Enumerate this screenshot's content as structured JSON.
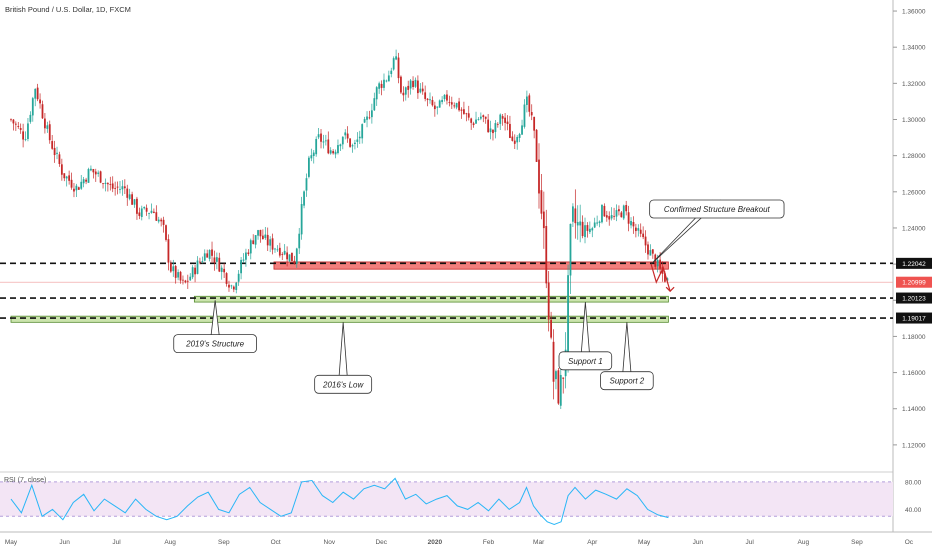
{
  "chart_data": {
    "type": "candlestick",
    "title": "British Pound / U.S. Dollar, 1D, FXCM",
    "colors": {
      "up": "#26a69a",
      "down": "#c62828",
      "resistance_zone": "#ef5350",
      "support_zone": "#8bc34a",
      "rsi_line": "#29b6f6",
      "rsi_band": "#f3e5f5",
      "price_line": "#ef9a9a",
      "price_tag": "#ef5350",
      "arrow": "#c62828",
      "axis_text": "#555555",
      "level_tag": "#111111"
    },
    "price_axis": {
      "ylim": [
        1.105,
        1.365
      ],
      "ticks": [
        "1.36000",
        "1.34000",
        "1.32000",
        "1.30000",
        "1.28000",
        "1.26000",
        "1.24000",
        "1.22000",
        "1.20000",
        "1.18000",
        "1.16000",
        "1.14000",
        "1.12000"
      ]
    },
    "time_axis": {
      "labels": [
        {
          "text": "May",
          "day": 0
        },
        {
          "text": "Jun",
          "day": 31
        },
        {
          "text": "Jul",
          "day": 61
        },
        {
          "text": "Aug",
          "day": 92
        },
        {
          "text": "Sep",
          "day": 123
        },
        {
          "text": "Oct",
          "day": 153
        },
        {
          "text": "Nov",
          "day": 184
        },
        {
          "text": "Dec",
          "day": 214
        },
        {
          "text": "2020",
          "day": 245
        },
        {
          "text": "Feb",
          "day": 276
        },
        {
          "text": "Mar",
          "day": 305
        },
        {
          "text": "Apr",
          "day": 336
        },
        {
          "text": "May",
          "day": 366
        },
        {
          "text": "Jun",
          "day": 397
        },
        {
          "text": "Jul",
          "day": 427
        },
        {
          "text": "Aug",
          "day": 458
        },
        {
          "text": "Sep",
          "day": 489
        },
        {
          "text": "Oc",
          "day": 519
        }
      ],
      "last_day": 380
    },
    "close_path": [
      [
        0,
        1.3
      ],
      [
        8,
        1.29
      ],
      [
        14,
        1.318
      ],
      [
        22,
        1.29
      ],
      [
        30,
        1.27
      ],
      [
        38,
        1.262
      ],
      [
        46,
        1.272
      ],
      [
        52,
        1.268
      ],
      [
        58,
        1.262
      ],
      [
        66,
        1.262
      ],
      [
        74,
        1.248
      ],
      [
        82,
        1.25
      ],
      [
        88,
        1.24
      ],
      [
        92,
        1.218
      ],
      [
        100,
        1.208
      ],
      [
        108,
        1.22
      ],
      [
        114,
        1.228
      ],
      [
        120,
        1.22
      ],
      [
        128,
        1.207
      ],
      [
        134,
        1.222
      ],
      [
        142,
        1.238
      ],
      [
        148,
        1.232
      ],
      [
        156,
        1.228
      ],
      [
        164,
        1.222
      ],
      [
        168,
        1.25
      ],
      [
        172,
        1.275
      ],
      [
        178,
        1.29
      ],
      [
        186,
        1.282
      ],
      [
        192,
        1.292
      ],
      [
        198,
        1.284
      ],
      [
        206,
        1.3
      ],
      [
        212,
        1.318
      ],
      [
        218,
        1.324
      ],
      [
        222,
        1.335
      ],
      [
        226,
        1.312
      ],
      [
        232,
        1.322
      ],
      [
        240,
        1.31
      ],
      [
        246,
        1.305
      ],
      [
        252,
        1.312
      ],
      [
        258,
        1.308
      ],
      [
        266,
        1.298
      ],
      [
        272,
        1.302
      ],
      [
        278,
        1.292
      ],
      [
        284,
        1.302
      ],
      [
        290,
        1.288
      ],
      [
        294,
        1.295
      ],
      [
        298,
        1.31
      ],
      [
        302,
        1.295
      ],
      [
        306,
        1.258
      ],
      [
        310,
        1.21
      ],
      [
        313,
        1.158
      ],
      [
        317,
        1.148
      ],
      [
        320,
        1.165
      ],
      [
        324,
        1.245
      ],
      [
        330,
        1.238
      ],
      [
        336,
        1.24
      ],
      [
        342,
        1.25
      ],
      [
        348,
        1.245
      ],
      [
        354,
        1.25
      ],
      [
        360,
        1.24
      ],
      [
        366,
        1.232
      ],
      [
        372,
        1.222
      ],
      [
        376,
        1.215
      ],
      [
        380,
        1.21
      ]
    ],
    "support_resistance": {
      "levels": [
        {
          "price": 1.22042,
          "label": "1.22042"
        },
        {
          "price": 1.20123,
          "label": "1.20123"
        },
        {
          "price": 1.19017,
          "label": "1.19017"
        }
      ],
      "current_price": {
        "price": 1.20999,
        "label": "1.20999"
      },
      "zones": [
        {
          "kind": "resistance",
          "low": 1.2172,
          "high": 1.2212,
          "from_day": 152,
          "to_day": 380
        },
        {
          "kind": "support",
          "low": 1.199,
          "high": 1.2022,
          "from_day": 106,
          "to_day": 380
        },
        {
          "kind": "support",
          "low": 1.1878,
          "high": 1.1912,
          "from_day": 0,
          "to_day": 380
        }
      ]
    },
    "annotations": [
      {
        "text": "2019's Structure",
        "day": 118,
        "price": 1.176,
        "target_day": 118,
        "target_price": 1.2
      },
      {
        "text": "2016's Low",
        "day": 192,
        "price": 1.1535,
        "target_day": 192,
        "target_price": 1.1878
      },
      {
        "text": "Support 1",
        "day": 332,
        "price": 1.1665,
        "target_day": 332,
        "target_price": 1.199
      },
      {
        "text": "Support 2",
        "day": 356,
        "price": 1.1555,
        "target_day": 356,
        "target_price": 1.1878
      },
      {
        "text": "Confirmed Structure Breakout",
        "day": 408,
        "price": 1.2505,
        "target_day": 370,
        "target_price": 1.22
      }
    ],
    "projection": [
      [
        370,
        1.22
      ],
      [
        373,
        1.21
      ],
      [
        377,
        1.218
      ],
      [
        381,
        1.205
      ]
    ],
    "rsi": {
      "label": "RSI (7, close)",
      "ticks": [
        "80.00",
        "40.00"
      ],
      "band": [
        30,
        80
      ],
      "ylim": [
        10,
        90
      ],
      "path": [
        [
          0,
          55
        ],
        [
          6,
          35
        ],
        [
          12,
          75
        ],
        [
          18,
          30
        ],
        [
          24,
          40
        ],
        [
          30,
          25
        ],
        [
          36,
          50
        ],
        [
          42,
          62
        ],
        [
          48,
          38
        ],
        [
          54,
          55
        ],
        [
          60,
          45
        ],
        [
          66,
          35
        ],
        [
          72,
          55
        ],
        [
          78,
          40
        ],
        [
          84,
          30
        ],
        [
          90,
          25
        ],
        [
          96,
          30
        ],
        [
          102,
          45
        ],
        [
          108,
          58
        ],
        [
          114,
          65
        ],
        [
          120,
          40
        ],
        [
          126,
          35
        ],
        [
          132,
          62
        ],
        [
          138,
          72
        ],
        [
          144,
          50
        ],
        [
          150,
          40
        ],
        [
          156,
          30
        ],
        [
          162,
          35
        ],
        [
          168,
          80
        ],
        [
          174,
          82
        ],
        [
          180,
          60
        ],
        [
          186,
          50
        ],
        [
          192,
          65
        ],
        [
          198,
          55
        ],
        [
          204,
          70
        ],
        [
          210,
          75
        ],
        [
          216,
          70
        ],
        [
          222,
          85
        ],
        [
          228,
          55
        ],
        [
          234,
          62
        ],
        [
          240,
          48
        ],
        [
          246,
          55
        ],
        [
          252,
          60
        ],
        [
          258,
          45
        ],
        [
          264,
          40
        ],
        [
          270,
          50
        ],
        [
          276,
          38
        ],
        [
          282,
          55
        ],
        [
          288,
          40
        ],
        [
          294,
          50
        ],
        [
          298,
          72
        ],
        [
          302,
          45
        ],
        [
          306,
          32
        ],
        [
          310,
          22
        ],
        [
          314,
          18
        ],
        [
          318,
          22
        ],
        [
          322,
          60
        ],
        [
          326,
          72
        ],
        [
          332,
          55
        ],
        [
          338,
          68
        ],
        [
          344,
          62
        ],
        [
          350,
          55
        ],
        [
          356,
          70
        ],
        [
          362,
          60
        ],
        [
          368,
          40
        ],
        [
          374,
          32
        ],
        [
          380,
          28
        ]
      ]
    }
  }
}
